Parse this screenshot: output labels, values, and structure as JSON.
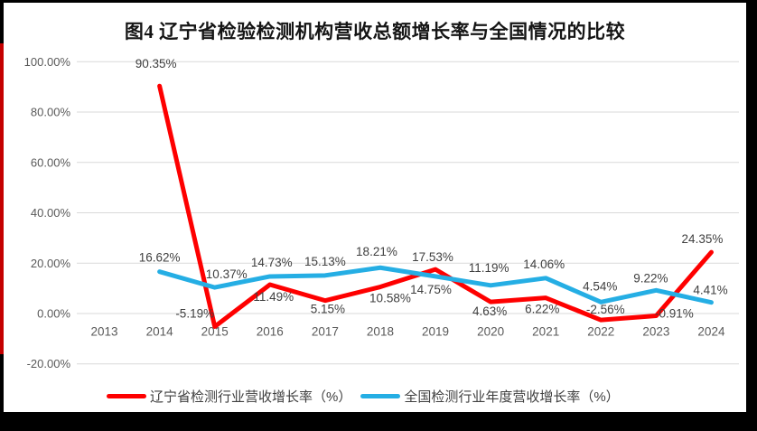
{
  "figure": {
    "title": "图4 辽宁省检验检测机构营收总额增长率与全国情况的比较"
  },
  "chart_data": {
    "type": "line",
    "title": "图4 辽宁省检验检测机构营收总额增长率与全国情况的比较",
    "categories": [
      "2013",
      "2014",
      "2015",
      "2016",
      "2017",
      "2018",
      "2019",
      "2020",
      "2021",
      "2022",
      "2023",
      "2024"
    ],
    "series": [
      {
        "name": "辽宁省检测行业营收增长率（%）",
        "color": "#fe0000",
        "start_index": 1,
        "values": [
          90.35,
          -5.19,
          11.49,
          5.15,
          10.58,
          17.53,
          4.63,
          6.22,
          -2.56,
          -0.91,
          24.35
        ],
        "labels": [
          "90.35%",
          "-5.19%",
          "11.49%",
          "5.15%",
          "10.58%",
          "17.53%",
          "4.63%",
          "6.22%",
          "-2.56%",
          "-0.91%",
          "24.35%"
        ]
      },
      {
        "name": "全国检测行业年度营收增长率（%）",
        "color": "#25aee4",
        "start_index": 1,
        "values": [
          16.62,
          10.37,
          14.73,
          15.13,
          18.21,
          14.75,
          11.19,
          14.06,
          4.54,
          9.22,
          4.41
        ],
        "labels": [
          "16.62%",
          "10.37%",
          "14.73%",
          "15.13%",
          "18.21%",
          "14.75%",
          "11.19%",
          "14.06%",
          "4.54%",
          "9.22%",
          "4.41%"
        ]
      }
    ],
    "y_axis": {
      "min": -20,
      "max": 100,
      "step": 20,
      "ticks": [
        {
          "value": 100,
          "label": "100.00%"
        },
        {
          "value": 80,
          "label": "80.00%"
        },
        {
          "value": 60,
          "label": "60.00%"
        },
        {
          "value": 40,
          "label": "40.00%"
        },
        {
          "value": 20,
          "label": "20.00%"
        },
        {
          "value": 0,
          "label": "0.00%"
        },
        {
          "value": -20,
          "label": "-20.00%"
        }
      ]
    },
    "grid": true,
    "legend_position": "bottom",
    "colors": {
      "grid": "#d9d9d9",
      "tick_text": "#595959",
      "data_label_text": "#3f3f3f"
    }
  }
}
